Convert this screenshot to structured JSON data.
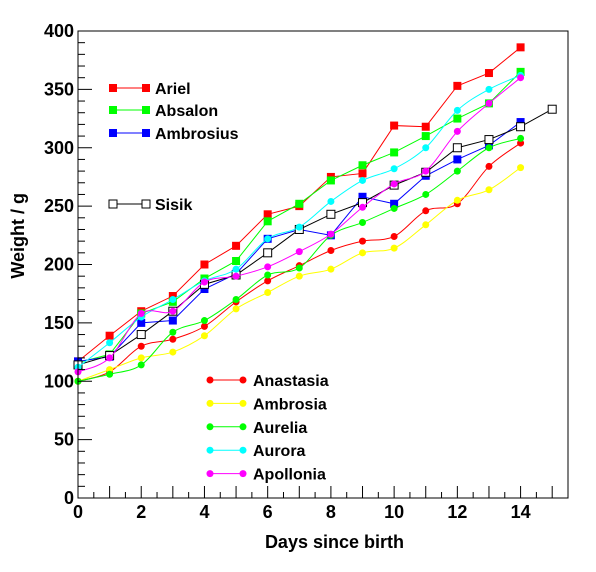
{
  "chart_data": {
    "type": "line",
    "xlabel": "Days since birth",
    "ylabel": "Weight / g",
    "xlim": [
      0,
      15.5
    ],
    "ylim": [
      0,
      400
    ],
    "xticks": [
      0,
      2,
      4,
      6,
      8,
      10,
      12,
      14
    ],
    "yticks": [
      0,
      50,
      100,
      150,
      200,
      250,
      300,
      350,
      400
    ],
    "grid": false,
    "legend_top": "top-left",
    "legend_bottom": "bottom-center",
    "series": [
      {
        "name": "Ariel",
        "color": "#ff0000",
        "marker": "square-filled",
        "legend": "top",
        "smooth": false,
        "x": [
          0,
          1,
          2,
          3,
          4,
          5,
          6,
          7,
          8,
          9,
          10,
          11,
          12,
          13,
          14
        ],
        "y": [
          117,
          139,
          160,
          173,
          200,
          216,
          243,
          250,
          275,
          278,
          319,
          318,
          353,
          364,
          386
        ]
      },
      {
        "name": "Absalon",
        "color": "#00ff00",
        "marker": "square-filled",
        "legend": "top",
        "smooth": false,
        "x": [
          0,
          1,
          2,
          3,
          4,
          5,
          6,
          7,
          8,
          9,
          10,
          11,
          12,
          13,
          14
        ],
        "y": [
          116,
          123,
          158,
          168,
          188,
          203,
          237,
          252,
          272,
          285,
          296,
          310,
          325,
          338,
          365
        ]
      },
      {
        "name": "Ambrosius",
        "color": "#0000ff",
        "marker": "square-filled",
        "legend": "top",
        "smooth": false,
        "x": [
          0,
          1,
          2,
          3,
          4,
          5,
          6,
          7,
          8,
          9,
          10,
          11,
          12,
          13,
          14
        ],
        "y": [
          117,
          121,
          150,
          152,
          179,
          192,
          222,
          230,
          225,
          258,
          252,
          276,
          290,
          302,
          322
        ]
      },
      {
        "name": "Sisik",
        "color": "#000000",
        "marker": "square-open",
        "legend": "top",
        "smooth": false,
        "x": [
          0,
          1,
          2,
          3,
          4,
          5,
          6,
          7,
          8,
          9,
          10,
          11,
          12,
          13,
          14,
          15
        ],
        "y": [
          114,
          122,
          140,
          160,
          183,
          191,
          210,
          230,
          243,
          253,
          268,
          279,
          300,
          307,
          318,
          333
        ]
      },
      {
        "name": "Anastasia",
        "color": "#ff0000",
        "marker": "circle-filled",
        "legend": "bottom",
        "smooth": true,
        "x": [
          0,
          1,
          2,
          3,
          4,
          5,
          6,
          7,
          8,
          9,
          10,
          11,
          12,
          13,
          14
        ],
        "y": [
          100,
          108,
          130,
          136,
          147,
          168,
          186,
          199,
          212,
          220,
          224,
          246,
          252,
          284,
          304
        ]
      },
      {
        "name": "Ambrosia",
        "color": "#ffff00",
        "marker": "circle-filled",
        "legend": "bottom",
        "smooth": true,
        "x": [
          0,
          1,
          2,
          3,
          4,
          5,
          6,
          7,
          8,
          9,
          10,
          11,
          12,
          13,
          14
        ],
        "y": [
          100,
          110,
          120,
          125,
          139,
          162,
          176,
          190,
          196,
          210,
          214,
          234,
          255,
          264,
          283
        ]
      },
      {
        "name": "Aurelia",
        "color": "#00ff00",
        "marker": "circle-filled",
        "legend": "bottom",
        "smooth": true,
        "x": [
          0,
          1,
          2,
          3,
          4,
          5,
          6,
          7,
          8,
          9,
          10,
          11,
          12,
          13,
          14
        ],
        "y": [
          100,
          106,
          114,
          142,
          152,
          170,
          191,
          197,
          225,
          236,
          248,
          260,
          280,
          300,
          308
        ]
      },
      {
        "name": "Aurora",
        "color": "#00ffff",
        "marker": "circle-filled",
        "legend": "bottom",
        "smooth": true,
        "x": [
          0,
          1,
          2,
          3,
          4,
          5,
          6,
          7,
          8,
          9,
          10,
          11,
          12,
          13,
          14
        ],
        "y": [
          112,
          133,
          155,
          170,
          186,
          196,
          222,
          232,
          254,
          272,
          282,
          300,
          332,
          350,
          362
        ]
      },
      {
        "name": "Apollonia",
        "color": "#ff00ff",
        "marker": "circle-filled",
        "legend": "bottom",
        "smooth": true,
        "x": [
          0,
          1,
          2,
          3,
          4,
          5,
          6,
          7,
          8,
          9,
          10,
          11,
          12,
          13,
          14
        ],
        "y": [
          108,
          120,
          158,
          160,
          185,
          190,
          198,
          211,
          226,
          249,
          269,
          280,
          314,
          338,
          360
        ]
      }
    ]
  }
}
